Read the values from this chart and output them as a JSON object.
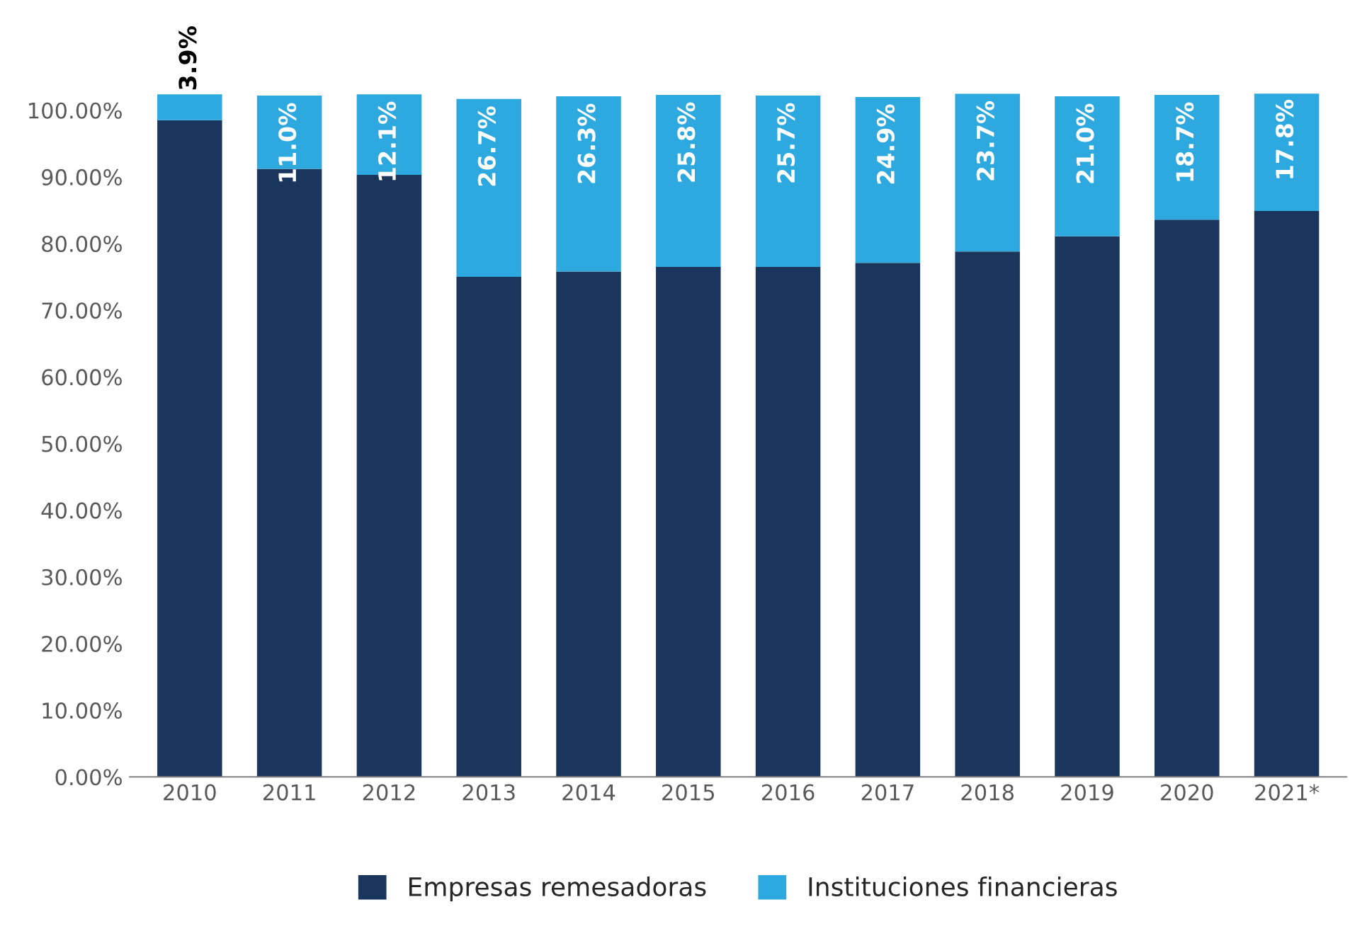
{
  "chart_data": {
    "type": "bar",
    "stacked": true,
    "categories": [
      "2010",
      "2011",
      "2012",
      "2013",
      "2014",
      "2015",
      "2016",
      "2017",
      "2018",
      "2019",
      "2020",
      "2021*"
    ],
    "series": [
      {
        "name": "Empresas remesadoras",
        "color": "#1b365d",
        "values": [
          98.5,
          91.2,
          90.3,
          75.0,
          75.8,
          76.5,
          76.5,
          77.1,
          78.8,
          81.1,
          83.6,
          84.9
        ]
      },
      {
        "name": "Instituciones financieras",
        "color": "#2ea9e0",
        "values": [
          3.9,
          11.0,
          12.1,
          26.7,
          26.3,
          25.8,
          25.7,
          24.9,
          23.7,
          21.0,
          18.7,
          17.8
        ],
        "value_labels": [
          "3.9%",
          "11.0%",
          "12.1%",
          "26.7%",
          "26.3%",
          "25.8%",
          "25.7%",
          "24.9%",
          "23.7%",
          "21.0%",
          "18.7%",
          "17.8%"
        ]
      }
    ],
    "ylim": [
      0,
      102.5
    ],
    "yticks": [
      {
        "value": 0,
        "label": "0.00%"
      },
      {
        "value": 10,
        "label": "10.00%"
      },
      {
        "value": 20,
        "label": "20.00%"
      },
      {
        "value": 30,
        "label": "30.00%"
      },
      {
        "value": 40,
        "label": "40.00%"
      },
      {
        "value": 50,
        "label": "50.00%"
      },
      {
        "value": 60,
        "label": "60.00%"
      },
      {
        "value": 70,
        "label": "70.00%"
      },
      {
        "value": 80,
        "label": "80.00%"
      },
      {
        "value": 90,
        "label": "90.00%"
      },
      {
        "value": 100,
        "label": "100.00%"
      }
    ],
    "grid": false,
    "legend": "bottom"
  }
}
